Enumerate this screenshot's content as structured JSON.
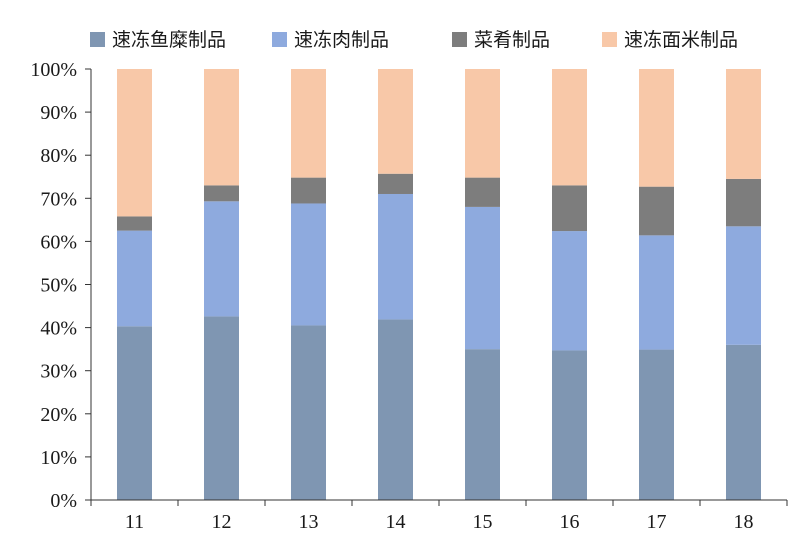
{
  "chart_data": {
    "type": "bar",
    "stacked": true,
    "percent_stacked": true,
    "title": "",
    "xlabel": "",
    "ylabel": "",
    "categories": [
      "11",
      "12",
      "13",
      "14",
      "15",
      "16",
      "17",
      "18"
    ],
    "ylim": [
      0,
      100
    ],
    "y_ticks": [
      "0%",
      "10%",
      "20%",
      "30%",
      "40%",
      "50%",
      "60%",
      "70%",
      "80%",
      "90%",
      "100%"
    ],
    "grid": false,
    "legend_position": "top",
    "series": [
      {
        "name": "速冻鱼糜制品",
        "color": "#7f96b2",
        "values": [
          40.3,
          42.6,
          40.5,
          41.9,
          35.0,
          34.7,
          34.9,
          36.0
        ]
      },
      {
        "name": "速冻肉制品",
        "color": "#8eaade",
        "values": [
          22.2,
          26.7,
          28.3,
          29.1,
          33.0,
          27.7,
          26.5,
          27.5
        ]
      },
      {
        "name": "菜肴制品",
        "color": "#7d7d7d",
        "values": [
          3.3,
          3.7,
          6.0,
          4.7,
          6.8,
          10.6,
          11.3,
          11.0
        ]
      },
      {
        "name": "速冻面米制品",
        "color": "#f8c8a8",
        "values": [
          34.2,
          27.0,
          25.2,
          24.3,
          25.2,
          27.0,
          27.3,
          25.5
        ]
      }
    ]
  }
}
